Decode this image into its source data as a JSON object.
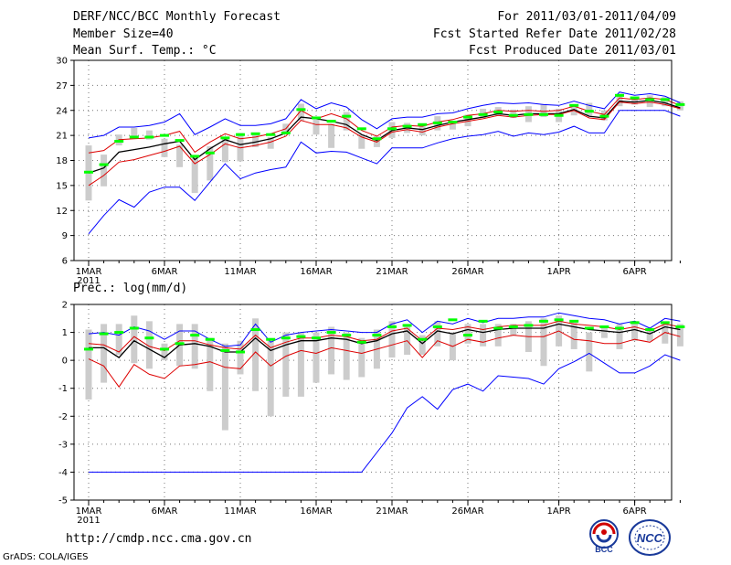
{
  "header": {
    "title": "DERF/NCC/BCC Monthly Forecast",
    "member_size": "Member Size=40",
    "temp_label": "Mean Surf. Temp.: °C",
    "forecast_range": "For 2011/03/01-2011/04/09",
    "started_refer": "Fcst Started Refer Date 2011/02/28",
    "produced_date": "Fcst Produced Date 2011/03/01"
  },
  "footer": {
    "url": "http://cmdp.ncc.cma.gov.cn",
    "grads": "GrADS: COLA/IGES",
    "logo_left_text": "BCC",
    "logo_right_text": "NCC"
  },
  "colors": {
    "max": "#0000ff",
    "min": "#0000ff",
    "mean": "#000000",
    "p25": "#dd0000",
    "p75": "#dd0000",
    "ens": "#cccccc",
    "clim": "#00ff00",
    "frame": "#000000"
  },
  "chart_data": [
    {
      "type": "line",
      "title": "Mean Surf. Temp.: °C",
      "x_labels": [
        "1MAR",
        "6MAR",
        "11MAR",
        "16MAR",
        "21MAR",
        "26MAR",
        "1APR",
        "6APR"
      ],
      "x_label_days": [
        1,
        6,
        11,
        16,
        21,
        26,
        32,
        37
      ],
      "year_label": "2011",
      "yticks": [
        "30",
        "27",
        "24",
        "21",
        "18",
        "15",
        "12",
        "9",
        "6"
      ],
      "ylim": [
        6,
        30
      ],
      "days": 40,
      "series": [
        {
          "name": "max",
          "values": [
            20.7,
            21,
            22,
            22,
            22.2,
            22.6,
            23.6,
            21.1,
            22,
            23,
            22.2,
            22.2,
            22.4,
            23,
            25.3,
            24.2,
            24.9,
            24.4,
            22.9,
            21.8,
            23,
            23.2,
            23.2,
            23.6,
            23.7,
            24.2,
            24.6,
            24.9,
            24.8,
            24.9,
            24.7,
            24.6,
            25.1,
            24.6,
            24.2,
            26.2,
            25.8,
            26,
            25.7,
            24.9
          ]
        },
        {
          "name": "p75",
          "values": [
            18.9,
            19.2,
            20.5,
            20.6,
            20.7,
            21,
            21.5,
            19,
            20.2,
            21.2,
            20.6,
            20.8,
            21.2,
            21.8,
            24,
            23,
            23.6,
            23,
            21.6,
            20.9,
            22,
            22.2,
            22.1,
            22.6,
            22.9,
            23.4,
            23.6,
            24,
            23.9,
            24,
            23.9,
            24,
            24.5,
            23.9,
            23.5,
            25.5,
            25.3,
            25.5,
            25.3,
            24.6
          ]
        },
        {
          "name": "mean",
          "values": [
            16.5,
            17.1,
            19,
            19.3,
            19.6,
            20,
            20.3,
            18.1,
            19.4,
            20.5,
            19.9,
            20.2,
            20.6,
            21.3,
            23.2,
            23,
            22.7,
            22.3,
            21.1,
            20.4,
            21.6,
            21.9,
            21.7,
            22.2,
            22.6,
            22.9,
            23.2,
            23.6,
            23.4,
            23.6,
            23.6,
            23.6,
            24.1,
            23.3,
            23.1,
            25.1,
            25,
            25.2,
            24.9,
            24.3
          ]
        },
        {
          "name": "p25",
          "values": [
            15,
            16.2,
            17.8,
            18.1,
            18.6,
            19.1,
            19.7,
            17.6,
            18.7,
            20,
            19.5,
            19.8,
            20.2,
            20.9,
            22.8,
            22.3,
            22.3,
            21.9,
            20.8,
            20.2,
            21.4,
            21.7,
            21.4,
            22,
            22.4,
            22.7,
            23,
            23.4,
            23.2,
            23.4,
            23.5,
            23.5,
            24,
            23.1,
            22.9,
            25,
            24.8,
            25,
            24.7,
            24.2
          ]
        },
        {
          "name": "min",
          "values": [
            9.2,
            11.4,
            13.3,
            12.4,
            14.2,
            14.8,
            14.8,
            13.2,
            15.4,
            17.6,
            15.8,
            16.5,
            16.9,
            17.2,
            20.2,
            18.9,
            19.1,
            19,
            18.3,
            17.6,
            19.5,
            19.5,
            19.5,
            20.1,
            20.6,
            20.9,
            21.1,
            21.5,
            20.9,
            21.3,
            21.1,
            21.4,
            22.1,
            21.3,
            21.3,
            24,
            24,
            24,
            24,
            23.3
          ]
        },
        {
          "name": "clim",
          "values": [
            16.6,
            17.5,
            20.3,
            20.8,
            20.8,
            21,
            20.4,
            18.5,
            18.9,
            20.7,
            21.1,
            21.2,
            21.1,
            21.3,
            24.1,
            23.1,
            22.7,
            23.3,
            21.8,
            20.6,
            21.8,
            22.1,
            22.3,
            22.5,
            22.6,
            23.2,
            23.5,
            23.8,
            23.4,
            23.5,
            23.5,
            23.4,
            24.6,
            23.9,
            23.3,
            25.8,
            25.5,
            25.3,
            25.3,
            24.7
          ]
        }
      ],
      "ens_range": [
        [
          13.2,
          19.8
        ],
        [
          14.9,
          18.7
        ],
        [
          19.8,
          21.1
        ],
        [
          20.9,
          21.9
        ],
        [
          20.5,
          21.6
        ],
        [
          18.4,
          20.6
        ],
        [
          17.2,
          19.9
        ],
        [
          14.1,
          18.6
        ],
        [
          15.6,
          19.7
        ],
        [
          17.8,
          20.6
        ],
        [
          17.9,
          21.3
        ],
        [
          19.6,
          21.3
        ],
        [
          19.4,
          20.8
        ],
        [
          21.1,
          22.4
        ],
        [
          22.8,
          24.8
        ],
        [
          21.1,
          22.9
        ],
        [
          19.5,
          22.4
        ],
        [
          21.6,
          23.8
        ],
        [
          19.4,
          21.1
        ],
        [
          19.6,
          20.9
        ],
        [
          20.7,
          22.6
        ],
        [
          21.3,
          22.5
        ],
        [
          21,
          22.1
        ],
        [
          21.6,
          23.3
        ],
        [
          21.7,
          22.7
        ],
        [
          22.1,
          23.5
        ],
        [
          23.1,
          24.2
        ],
        [
          23.4,
          24.4
        ],
        [
          23.1,
          24.1
        ],
        [
          22.6,
          24.5
        ],
        [
          23.2,
          24.7
        ],
        [
          22.6,
          24.2
        ],
        [
          23.4,
          24.7
        ],
        [
          23.4,
          24.9
        ],
        [
          22.8,
          24
        ],
        [
          24.5,
          26
        ],
        [
          24.7,
          25.5
        ],
        [
          24.4,
          25.8
        ],
        [
          24.5,
          25.6
        ],
        [
          24,
          25.1
        ]
      ]
    },
    {
      "type": "line",
      "title": "Prec.: log(mm/d)",
      "x_labels": [
        "1MAR",
        "6MAR",
        "11MAR",
        "16MAR",
        "21MAR",
        "26MAR",
        "1APR",
        "6APR"
      ],
      "x_label_days": [
        1,
        6,
        11,
        16,
        21,
        26,
        32,
        37
      ],
      "year_label": "2011",
      "yticks": [
        "2",
        "1",
        "0",
        "-1",
        "-2",
        "-3",
        "-4",
        "-5"
      ],
      "ylim": [
        -5,
        2
      ],
      "days": 40,
      "series": [
        {
          "name": "max",
          "values": [
            0.95,
            1,
            0.9,
            1.2,
            1.05,
            0.75,
            1.05,
            1.05,
            0.75,
            0.5,
            0.55,
            1.3,
            0.65,
            0.9,
            1,
            1.05,
            1.1,
            1.05,
            1,
            1,
            1.3,
            1.45,
            1,
            1.4,
            1.3,
            1.5,
            1.35,
            1.5,
            1.5,
            1.55,
            1.55,
            1.7,
            1.6,
            1.5,
            1.45,
            1.3,
            1.4,
            1.15,
            1.5,
            1.4
          ]
        },
        {
          "name": "p75",
          "values": [
            0.6,
            0.55,
            0.3,
            0.85,
            0.5,
            0.35,
            0.7,
            0.7,
            0.55,
            0.45,
            0.4,
            0.9,
            0.45,
            0.65,
            0.8,
            0.8,
            0.9,
            0.85,
            0.7,
            0.75,
            1.05,
            1.15,
            0.7,
            1.15,
            1.1,
            1.2,
            1.1,
            1.2,
            1.25,
            1.25,
            1.25,
            1.4,
            1.3,
            1.25,
            1.2,
            1.1,
            1.2,
            1.05,
            1.3,
            1.2
          ]
        },
        {
          "name": "mean",
          "values": [
            0.45,
            0.45,
            0.1,
            0.7,
            0.4,
            0.1,
            0.55,
            0.6,
            0.5,
            0.3,
            0.3,
            0.8,
            0.35,
            0.55,
            0.7,
            0.7,
            0.8,
            0.75,
            0.6,
            0.7,
            0.95,
            1.05,
            0.6,
            1.05,
            0.95,
            1.1,
            1,
            1.1,
            1.15,
            1.15,
            1.15,
            1.3,
            1.2,
            1.1,
            1.05,
            1,
            1.1,
            0.95,
            1.2,
            1.1
          ]
        },
        {
          "name": "p25",
          "values": [
            0.05,
            -0.2,
            -0.95,
            -0.15,
            -0.5,
            -0.65,
            -0.2,
            -0.15,
            -0.05,
            -0.25,
            -0.3,
            0.3,
            -0.2,
            0.15,
            0.35,
            0.25,
            0.45,
            0.35,
            0.25,
            0.4,
            0.55,
            0.7,
            0.1,
            0.7,
            0.5,
            0.75,
            0.65,
            0.8,
            0.9,
            0.85,
            0.85,
            1.05,
            0.75,
            0.7,
            0.6,
            0.6,
            0.75,
            0.65,
            1,
            0.85
          ]
        },
        {
          "name": "min",
          "values": [
            -4,
            -4,
            -4,
            -4,
            -4,
            -4,
            -4,
            -4,
            -4,
            -4,
            -4,
            -4,
            -4,
            -4,
            -4,
            -4,
            -4,
            -4,
            -4,
            -3.3,
            -2.6,
            -1.7,
            -1.3,
            -1.75,
            -1.05,
            -0.85,
            -1.1,
            -0.55,
            -0.6,
            -0.65,
            -0.85,
            -0.3,
            -0.05,
            0.25,
            -0.1,
            -0.45,
            -0.45,
            -0.2,
            0.2,
            0
          ]
        },
        {
          "name": "clim",
          "values": [
            0.4,
            0.95,
            1,
            1.15,
            0.8,
            0.4,
            0.6,
            0.9,
            0.75,
            0.35,
            0.3,
            1.1,
            0.75,
            0.8,
            0.85,
            0.8,
            1,
            0.9,
            0.65,
            0.9,
            1.2,
            1.25,
            0.75,
            1.2,
            1.45,
            0.9,
            1.4,
            1.15,
            1.2,
            1.25,
            1.4,
            1.45,
            1.4,
            1.15,
            1.2,
            1.15,
            1.35,
            1.1,
            1.35,
            1.2
          ]
        }
      ],
      "ens_range": [
        [
          -1.4,
          1.1
        ],
        [
          -0.8,
          1.3
        ],
        [
          0.2,
          1.3
        ],
        [
          -0.1,
          1.6
        ],
        [
          -0.3,
          1.4
        ],
        [
          0,
          0.6
        ],
        [
          -0.2,
          1.3
        ],
        [
          -0.3,
          1.3
        ],
        [
          -1.1,
          0.8
        ],
        [
          -2.5,
          0.6
        ],
        [
          -0.5,
          0.7
        ],
        [
          -1.1,
          1.5
        ],
        [
          -2,
          0.7
        ],
        [
          -1.3,
          1
        ],
        [
          -1.3,
          1
        ],
        [
          -0.8,
          1
        ],
        [
          -0.5,
          1.2
        ],
        [
          -0.7,
          1
        ],
        [
          -0.6,
          0.8
        ],
        [
          -0.3,
          1.1
        ],
        [
          0.1,
          1.4
        ],
        [
          0.2,
          1.3
        ],
        [
          0.2,
          0.9
        ],
        [
          0.5,
          1.4
        ],
        [
          0,
          1
        ],
        [
          0.6,
          1.3
        ],
        [
          0.5,
          1.3
        ],
        [
          0.5,
          1.3
        ],
        [
          0.9,
          1.3
        ],
        [
          0.3,
          1.4
        ],
        [
          -0.2,
          1.5
        ],
        [
          0.5,
          1.6
        ],
        [
          0.4,
          1.4
        ],
        [
          -0.4,
          1
        ],
        [
          0.8,
          1.2
        ],
        [
          0.4,
          1.3
        ],
        [
          0.7,
          1.4
        ],
        [
          0.7,
          1.1
        ],
        [
          0.6,
          1.3
        ],
        [
          0.5,
          1.3
        ]
      ]
    }
  ]
}
